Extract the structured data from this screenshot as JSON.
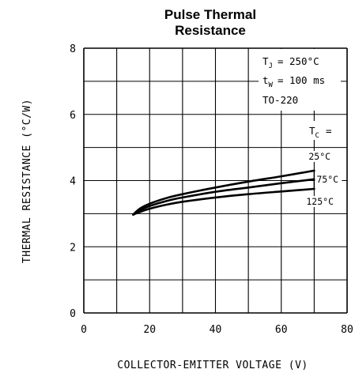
{
  "chart_data": {
    "type": "line",
    "title_line1": "Pulse Thermal",
    "title_line2": "Resistance",
    "xlabel": "COLLECTOR-EMITTER VOLTAGE (V)",
    "ylabel": "THERMAL RESISTANCE (°C/W)",
    "xlim": [
      0,
      80
    ],
    "ylim": [
      0,
      8
    ],
    "xticks": [
      "0",
      "20",
      "40",
      "60",
      "80"
    ],
    "yticks": [
      "0",
      "2",
      "4",
      "6",
      "8"
    ],
    "grid": true,
    "annotations": {
      "tj_sym": "T",
      "tj_sub": "J",
      "tj_val": "= 250°C",
      "tw_sym": "t",
      "tw_sub": "W",
      "tw_val": "= 100 ms",
      "package": "TO-220",
      "tc_sym": "T",
      "tc_sub": "C",
      "tc_val": "="
    },
    "series": [
      {
        "name": "25°C",
        "x": [
          15,
          17,
          20,
          25,
          30,
          40,
          50,
          60,
          70
        ],
        "y": [
          2.97,
          3.15,
          3.3,
          3.47,
          3.59,
          3.79,
          3.97,
          4.13,
          4.3
        ]
      },
      {
        "name": "75°C",
        "x": [
          15,
          17,
          20,
          25,
          30,
          40,
          50,
          60,
          70
        ],
        "y": [
          2.97,
          3.1,
          3.23,
          3.38,
          3.49,
          3.66,
          3.79,
          3.92,
          4.04
        ]
      },
      {
        "name": "125°C",
        "x": [
          15,
          17,
          20,
          25,
          30,
          40,
          50,
          60,
          70
        ],
        "y": [
          2.97,
          3.05,
          3.15,
          3.27,
          3.36,
          3.49,
          3.59,
          3.67,
          3.75
        ]
      }
    ]
  }
}
